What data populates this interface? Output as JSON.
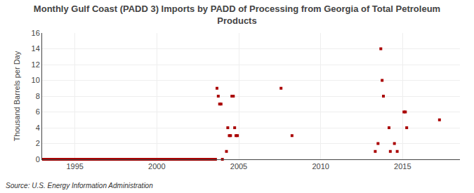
{
  "chart_data": {
    "type": "scatter",
    "title": "Monthly Gulf Coast (PADD 3) Imports by PADD of Processing from Georgia of Total Petroleum\nProducts",
    "ylabel": "Thousand Barrels per Day",
    "annotations": [
      "Source: U.S. Energy Information Administration"
    ],
    "xlim": [
      1993.0,
      2018.5
    ],
    "ylim": [
      0,
      16
    ],
    "xticks": [
      1995,
      2000,
      2005,
      2010,
      2015
    ],
    "yticks": [
      0,
      2,
      4,
      6,
      8,
      10,
      12,
      14,
      16
    ],
    "grid": true,
    "color": "#aa0000",
    "marker": "square",
    "x": [
      1993.08,
      1993.17,
      1993.25,
      1993.33,
      1993.42,
      1993.5,
      1993.58,
      1993.67,
      1993.75,
      1993.83,
      1993.92,
      1994.0,
      1994.08,
      1994.17,
      1994.25,
      1994.33,
      1994.42,
      1994.5,
      1994.58,
      1994.67,
      1994.75,
      1994.83,
      1994.92,
      1995.0,
      1995.08,
      1995.17,
      1995.25,
      1995.33,
      1995.42,
      1995.5,
      1995.58,
      1995.67,
      1995.75,
      1995.83,
      1995.92,
      1996.0,
      1996.08,
      1996.17,
      1996.25,
      1996.33,
      1996.42,
      1996.5,
      1996.58,
      1996.67,
      1996.75,
      1996.83,
      1996.92,
      1997.0,
      1997.08,
      1997.17,
      1997.25,
      1997.33,
      1997.42,
      1997.5,
      1997.58,
      1997.67,
      1997.75,
      1997.83,
      1997.92,
      1998.0,
      1998.08,
      1998.17,
      1998.25,
      1998.33,
      1998.42,
      1998.5,
      1998.58,
      1998.67,
      1998.75,
      1998.83,
      1998.92,
      1999.0,
      1999.08,
      1999.17,
      1999.25,
      1999.33,
      1999.42,
      1999.5,
      1999.58,
      1999.67,
      1999.75,
      1999.83,
      1999.92,
      2000.0,
      2000.08,
      2000.17,
      2000.25,
      2000.33,
      2000.42,
      2000.5,
      2000.58,
      2000.67,
      2000.75,
      2000.83,
      2000.92,
      2001.0,
      2001.08,
      2001.17,
      2001.25,
      2001.33,
      2001.42,
      2001.5,
      2001.58,
      2001.67,
      2001.75,
      2001.83,
      2001.92,
      2002.0,
      2002.08,
      2002.17,
      2002.25,
      2002.33,
      2002.42,
      2002.5,
      2002.58,
      2002.67,
      2002.75,
      2002.83,
      2002.92,
      2003.0,
      2003.08,
      2003.17,
      2003.25,
      2003.33,
      2003.42,
      2003.5,
      2003.58,
      2003.67,
      2003.75,
      2003.83,
      2003.92,
      2004.0,
      2004.25,
      2004.33,
      2004.42,
      2004.5,
      2004.58,
      2004.67,
      2004.75,
      2004.83,
      2004.92,
      2007.58,
      2008.25,
      2013.33,
      2013.5,
      2013.67,
      2013.75,
      2013.83,
      2014.17,
      2014.25,
      2014.5,
      2014.67,
      2015.08,
      2015.17,
      2015.25,
      2017.25
    ],
    "values": [
      0.0,
      0.0,
      0.0,
      0.0,
      0.0,
      0.0,
      0.0,
      0.0,
      0.0,
      0.0,
      0.0,
      0.0,
      0.0,
      0.0,
      0.0,
      0.0,
      0.0,
      0.0,
      0.0,
      0.0,
      0.0,
      0.0,
      0.0,
      0.0,
      0.0,
      0.0,
      0.0,
      0.0,
      0.0,
      0.0,
      0.0,
      0.0,
      0.0,
      0.0,
      0.0,
      0.0,
      0.0,
      0.0,
      0.0,
      0.0,
      0.0,
      0.0,
      0.0,
      0.0,
      0.0,
      0.0,
      0.0,
      0.0,
      0.0,
      0.0,
      0.0,
      0.0,
      0.0,
      0.0,
      0.0,
      0.0,
      0.0,
      0.0,
      0.0,
      0.0,
      0.0,
      0.0,
      0.0,
      0.0,
      0.0,
      0.0,
      0.0,
      0.0,
      0.0,
      0.0,
      0.0,
      0.0,
      0.0,
      0.0,
      0.0,
      0.0,
      0.0,
      0.0,
      0.0,
      0.0,
      0.0,
      0.0,
      0.0,
      0.0,
      0.0,
      0.0,
      0.0,
      0.0,
      0.0,
      0.0,
      0.0,
      0.0,
      0.0,
      0.0,
      0.0,
      0.0,
      0.0,
      0.0,
      0.0,
      0.0,
      0.0,
      0.0,
      0.0,
      0.0,
      0.0,
      0.0,
      0.0,
      0.0,
      0.0,
      0.0,
      0.0,
      0.0,
      0.0,
      0.0,
      0.0,
      0.0,
      0.0,
      0.0,
      0.0,
      0.0,
      0.0,
      0.0,
      0.0,
      0.0,
      0.0,
      0.0,
      0.0,
      9.0,
      8.0,
      7.0,
      7.0,
      0.0,
      1.0,
      4.0,
      3.0,
      3.0,
      8.0,
      8.0,
      4.0,
      3.0,
      3.0,
      9.0,
      3.0,
      1.0,
      2.0,
      14.0,
      10.0,
      8.0,
      4.0,
      1.0,
      2.0,
      1.0,
      6.0,
      6.0,
      4.0,
      5.0
    ]
  }
}
